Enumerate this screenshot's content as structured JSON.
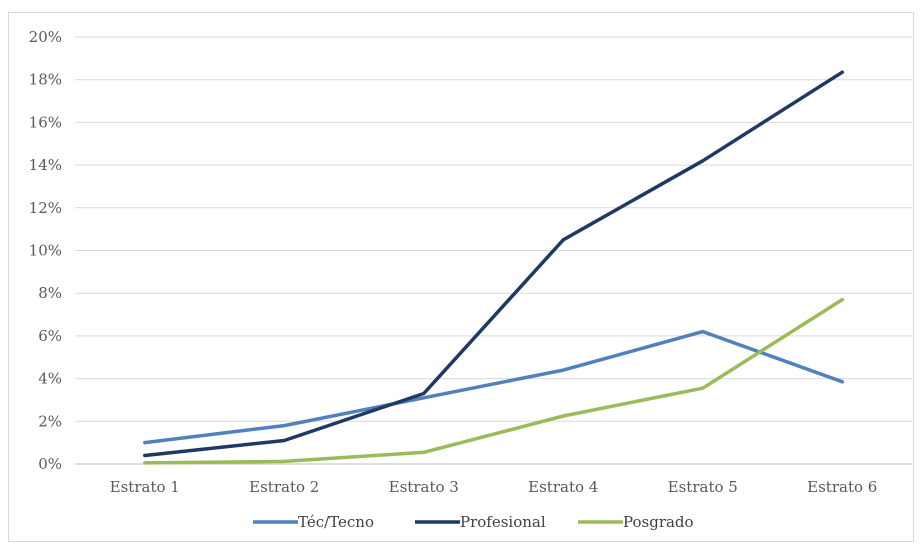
{
  "chart_data": {
    "type": "line",
    "categories": [
      "Estrato 1",
      "Estrato 2",
      "Estrato 3",
      "Estrato 4",
      "Estrato 5",
      "Estrato 6"
    ],
    "y_ticks": [
      "0%",
      "2%",
      "4%",
      "6%",
      "8%",
      "10%",
      "12%",
      "14%",
      "16%",
      "18%",
      "20%"
    ],
    "ylim": [
      0,
      20
    ],
    "y_unit": "%",
    "grid": true,
    "legend_position": "bottom",
    "series": [
      {
        "name": "Téc/Tecno",
        "color": "#4f81bd",
        "values": [
          1.0,
          1.8,
          3.1,
          4.4,
          6.2,
          3.85
        ]
      },
      {
        "name": "Profesional",
        "color": "#1f3864",
        "values": [
          0.4,
          1.1,
          3.3,
          10.5,
          14.2,
          18.35
        ]
      },
      {
        "name": "Posgrado",
        "color": "#9bbb59",
        "values": [
          0.05,
          0.12,
          0.55,
          2.25,
          3.55,
          7.7
        ]
      }
    ]
  }
}
